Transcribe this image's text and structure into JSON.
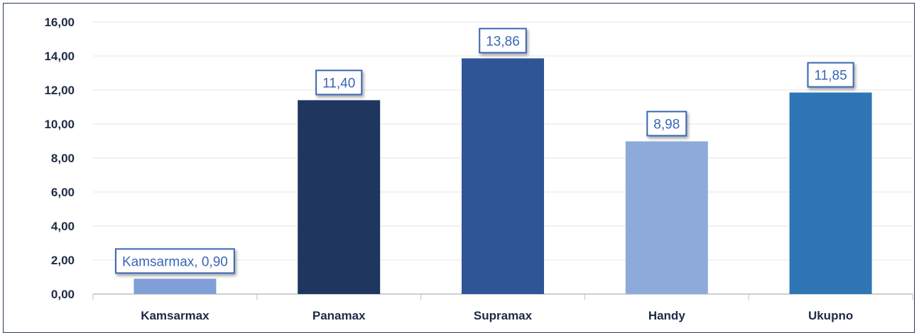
{
  "chart_data": {
    "type": "bar",
    "title": "",
    "xlabel": "",
    "ylabel": "",
    "categories": [
      "Kamsarmax",
      "Panamax",
      "Supramax",
      "Handy",
      "Ukupno"
    ],
    "values": [
      0.9,
      11.4,
      13.86,
      8.98,
      11.85
    ],
    "data_labels": [
      "Kamsarmax, 0,90",
      "11,40",
      "13,86",
      "8,98",
      "11,85"
    ],
    "bar_colors": [
      "#7f9fd6",
      "#1f365f",
      "#2f5597",
      "#8eaadb",
      "#2e75b6"
    ],
    "ylim": [
      0,
      16
    ],
    "yticks": [
      "0,00",
      "2,00",
      "4,00",
      "6,00",
      "8,00",
      "10,00",
      "12,00",
      "14,00",
      "16,00"
    ],
    "grid": true,
    "legend": "none"
  }
}
